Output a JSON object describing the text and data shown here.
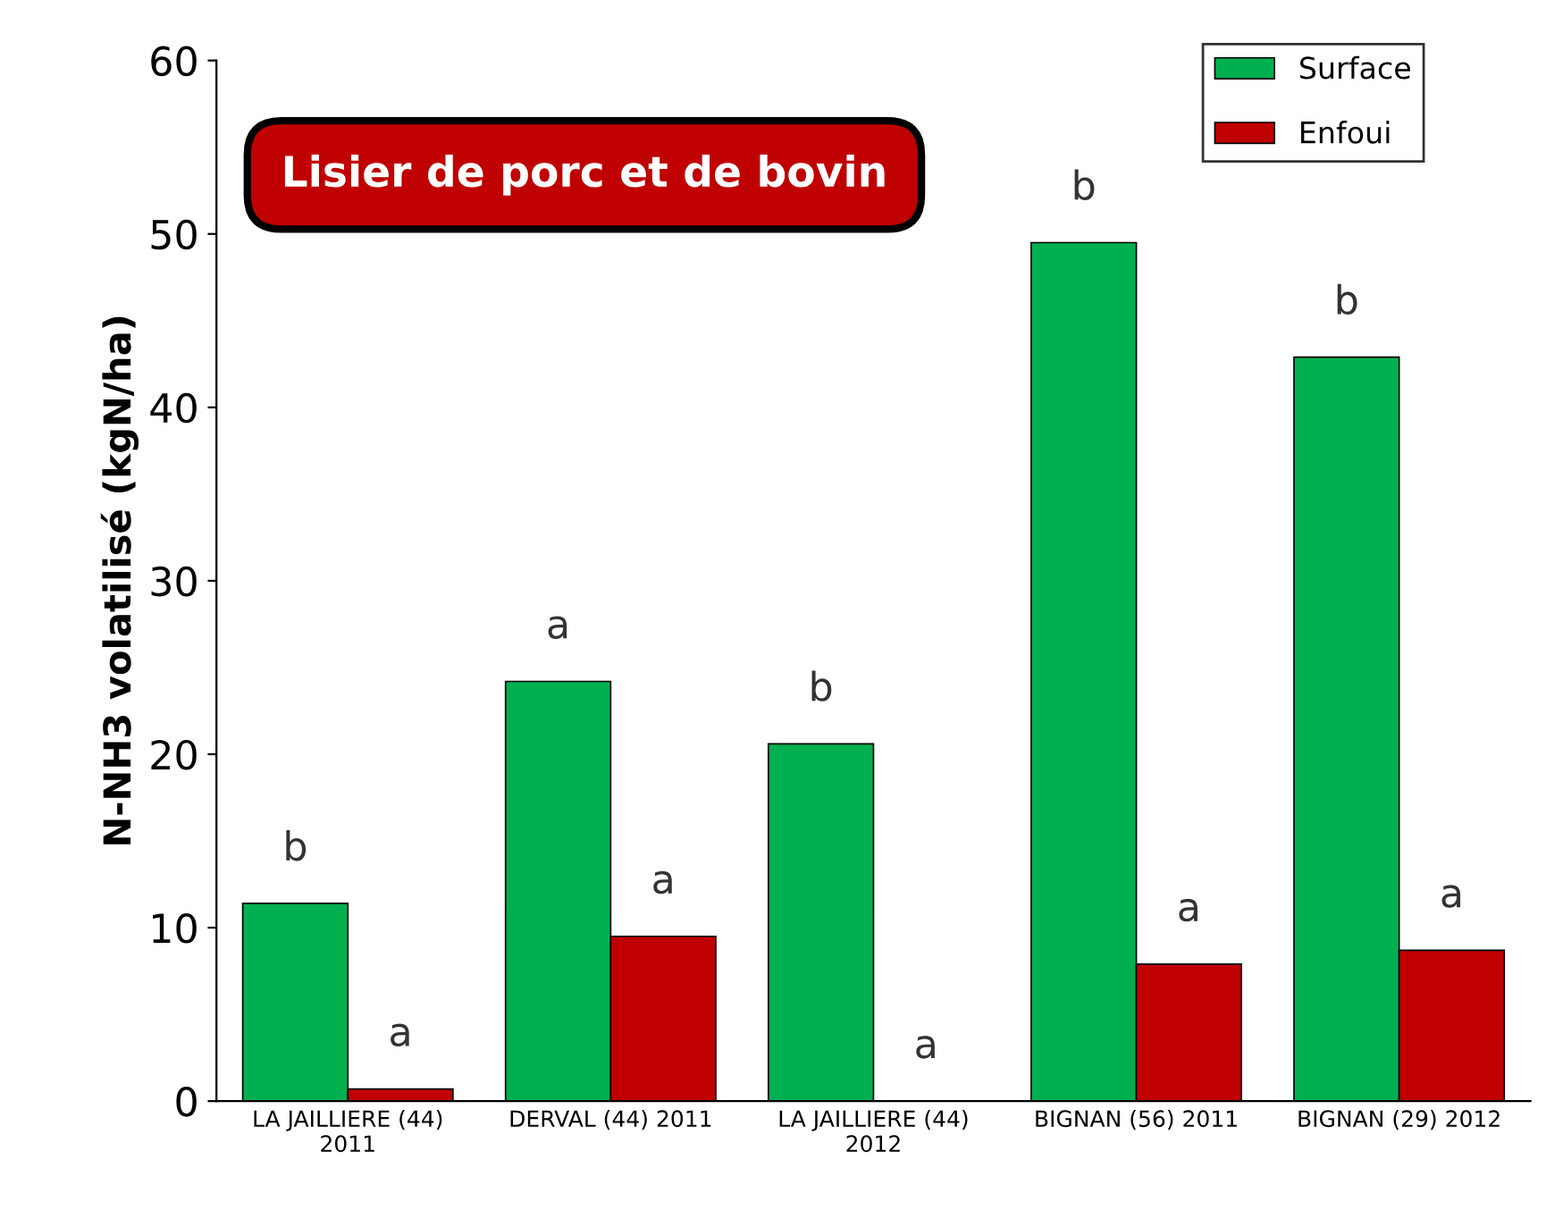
{
  "chart_data": {
    "type": "bar",
    "title": "Lisier de porc et de bovin",
    "ylabel": "N-NH3 volatilisé (kgN/ha)",
    "categories": [
      "LA JAILLIERE (44)\n2011",
      "DERVAL (44) 2011",
      "LA JAILLIERE (44)\n2012",
      "BIGNAN (56) 2011",
      "BIGNAN (29) 2012"
    ],
    "series": [
      {
        "name": "Surface",
        "color": "#00b050",
        "values": [
          11.4,
          24.2,
          20.6,
          49.5,
          42.9
        ]
      },
      {
        "name": "Enfoui",
        "color": "#c00000",
        "values": [
          0.7,
          9.5,
          0,
          7.9,
          8.7
        ]
      }
    ],
    "ylim": [
      0,
      60
    ],
    "yticks": [
      0,
      10,
      20,
      30,
      40,
      50,
      60
    ],
    "grid": false,
    "legend": "top right",
    "annotations": [
      {
        "text": "b",
        "x": "LA JAILLIERE (44)\n2011",
        "y": 11.4
      },
      {
        "text": "a",
        "x": "LA JAILLIERE (44)\n2011",
        "y": 0.7
      },
      {
        "text": "a",
        "x": "DERVAL (44) 2011",
        "y": 24.2
      },
      {
        "text": "a",
        "x": "DERVAL (44) 2011",
        "y": 9.5
      },
      {
        "text": "b",
        "x": "LA JAILLIERE (44)\n2012",
        "y": 20.6
      },
      {
        "text": "a",
        "x": "LA JAILLIERE (44)\n2012",
        "y": 0
      },
      {
        "text": "b",
        "x": "BIGNAN (56) 2011",
        "y": 49.5
      },
      {
        "text": "a",
        "x": "BIGNAN (56) 2011",
        "y": 7.9
      },
      {
        "text": "b",
        "x": "BIGNAN (29) 2012",
        "y": 42.9
      },
      {
        "text": "a",
        "x": "BIGNAN (29) 2012",
        "y": 8.7
      }
    ]
  }
}
